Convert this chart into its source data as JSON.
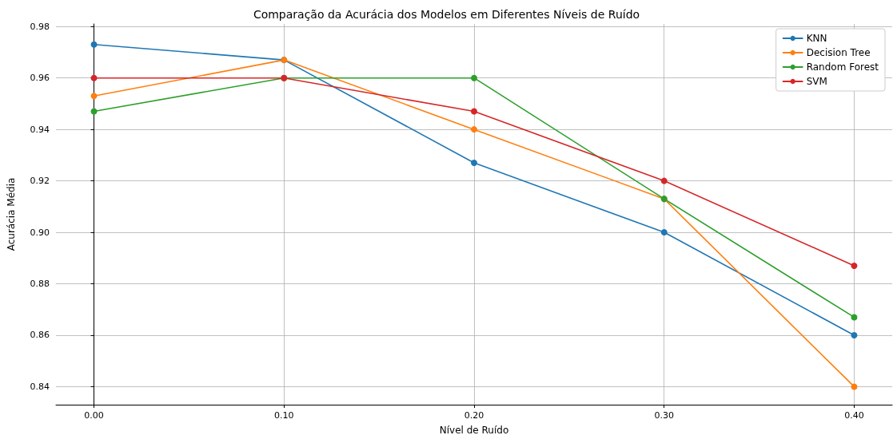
{
  "chart_data": {
    "type": "line",
    "title": "Comparação da Acurácia dos Modelos em Diferentes Níveis de Ruído",
    "xlabel": "Nível de Ruído",
    "ylabel": "Acurácia Média",
    "x": [
      0.0,
      0.1,
      0.2,
      0.3,
      0.4
    ],
    "series": [
      {
        "name": "KNN",
        "color": "#1f77b4",
        "values": [
          0.973,
          0.967,
          0.927,
          0.9,
          0.86
        ]
      },
      {
        "name": "Decision Tree",
        "color": "#ff7f0e",
        "values": [
          0.953,
          0.967,
          0.94,
          0.913,
          0.84
        ]
      },
      {
        "name": "Random Forest",
        "color": "#2ca02c",
        "values": [
          0.947,
          0.96,
          0.96,
          0.913,
          0.867
        ]
      },
      {
        "name": "SVM",
        "color": "#d62728",
        "values": [
          0.96,
          0.96,
          0.947,
          0.92,
          0.887
        ]
      }
    ],
    "xlim": [
      -0.02,
      0.42
    ],
    "xticks": [
      {
        "value": 0,
        "label": "0.00"
      },
      {
        "value": 0.1,
        "label": "0.10"
      },
      {
        "value": 0.2,
        "label": "0.20"
      },
      {
        "value": 0.3,
        "label": "0.30"
      },
      {
        "value": 0.4,
        "label": "0.40"
      }
    ],
    "ylim": [
      0.833,
      0.981
    ],
    "yticks": [
      {
        "value": 0.84,
        "label": "0.84"
      },
      {
        "value": 0.86,
        "label": "0.86"
      },
      {
        "value": 0.88,
        "label": "0.88"
      },
      {
        "value": 0.9,
        "label": "0.90"
      },
      {
        "value": 0.92,
        "label": "0.92"
      },
      {
        "value": 0.94,
        "label": "0.94"
      },
      {
        "value": 0.96,
        "label": "0.96"
      },
      {
        "value": 0.98,
        "label": "0.98"
      }
    ],
    "grid": true,
    "legend": "top right",
    "marker": "circle",
    "line_style": "solid"
  }
}
